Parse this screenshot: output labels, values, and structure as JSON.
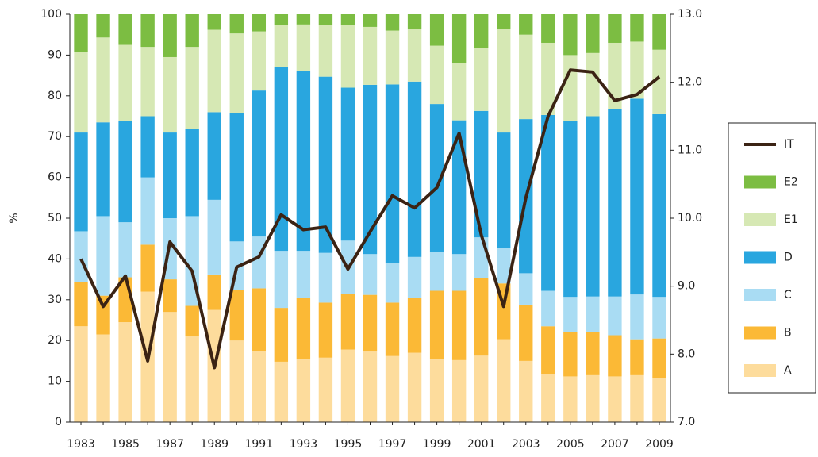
{
  "chart_data": {
    "type": "bar",
    "stacked": true,
    "ylabel": "%",
    "categories": [
      "1983",
      null,
      "1985",
      null,
      "1987",
      null,
      "1989",
      null,
      "1991",
      null,
      "1993",
      null,
      "1995",
      null,
      "1997",
      null,
      "1999",
      null,
      "2001",
      null,
      "2003",
      null,
      "2005",
      null,
      "2007",
      null,
      "2009"
    ],
    "series": [
      {
        "name": "A",
        "color": "#fddc9c",
        "values": [
          23.5,
          21.5,
          24.5,
          32,
          27,
          21,
          27.5,
          20,
          17.5,
          14.8,
          15.5,
          15.8,
          17.8,
          17.3,
          16.2,
          17,
          15.5,
          15.2,
          16.3,
          20.3,
          15,
          11.8,
          11.2,
          11.5,
          11.2,
          11.5,
          10.8
        ]
      },
      {
        "name": "B",
        "color": "#fbb936",
        "values": [
          10.8,
          9.5,
          11,
          11.5,
          8,
          7.5,
          8.7,
          12.3,
          15.3,
          13.2,
          15,
          13.5,
          13.7,
          13.9,
          13.1,
          13.5,
          16.7,
          17,
          19,
          13.7,
          13.8,
          11.7,
          10.8,
          10.5,
          10.1,
          8.8,
          9.7
        ]
      },
      {
        "name": "C",
        "color": "#a9dcf3",
        "values": [
          12.5,
          19.5,
          13.5,
          16.5,
          15,
          22,
          18.3,
          12,
          12.7,
          14,
          11.5,
          12.2,
          13,
          10,
          9.7,
          10,
          9.6,
          9,
          10,
          8.7,
          7.7,
          8.7,
          8.7,
          8.8,
          9.5,
          11,
          10.2
        ]
      },
      {
        "name": "D",
        "color": "#29a6df",
        "values": [
          24.2,
          23,
          24.8,
          15,
          21,
          21.3,
          21.5,
          31.5,
          35.8,
          45,
          44,
          43.2,
          37.5,
          41.5,
          43.8,
          43,
          36.2,
          32.8,
          31,
          28.3,
          37.8,
          43.1,
          43.1,
          44.2,
          46,
          48,
          44.8
        ]
      },
      {
        "name": "E1",
        "color": "#d6e8b4",
        "values": [
          19.7,
          20.8,
          18.7,
          17,
          18.5,
          20.2,
          20.2,
          19.5,
          14.5,
          10.3,
          11.5,
          12.6,
          15.3,
          14.2,
          13.2,
          12.8,
          14.3,
          14,
          15.5,
          25.3,
          20.7,
          17.7,
          16.2,
          15.5,
          16.2,
          14,
          15.8
        ]
      },
      {
        "name": "E2",
        "color": "#7cbd42",
        "values": [
          9.3,
          5.7,
          7.5,
          8,
          10.5,
          8,
          3.8,
          4.7,
          4.2,
          2.7,
          2.5,
          2.7,
          2.7,
          3.1,
          4,
          3.7,
          7.7,
          12,
          8.2,
          3.7,
          5,
          7,
          10,
          9.5,
          7,
          6.7,
          8.7
        ]
      },
      {
        "name": "IT",
        "color": "#3b2314",
        "type": "line",
        "axis": "y2",
        "values": [
          9.4,
          8.7,
          9.15,
          7.9,
          9.65,
          9.22,
          7.8,
          9.28,
          9.43,
          10.05,
          9.83,
          9.87,
          9.25,
          9.8,
          10.33,
          10.15,
          10.45,
          11.25,
          9.75,
          8.7,
          10.3,
          11.5,
          12.18,
          12.15,
          11.73,
          11.82,
          12.08
        ]
      }
    ],
    "ylim": [
      0,
      100
    ],
    "yticks": [
      0,
      10,
      20,
      30,
      40,
      50,
      60,
      70,
      80,
      90,
      100
    ],
    "y2lim": [
      7,
      13
    ],
    "y2ticks": [
      {
        "value": 7,
        "label": "7.0"
      },
      {
        "value": 8,
        "label": "8.0"
      },
      {
        "value": 9,
        "label": "9.0"
      },
      {
        "value": 10,
        "label": "10.0"
      },
      {
        "value": 11,
        "label": "11.0"
      },
      {
        "value": 12,
        "label": "12.0"
      },
      {
        "value": 13,
        "label": "13.0"
      }
    ],
    "grid": false,
    "legend": "right"
  }
}
